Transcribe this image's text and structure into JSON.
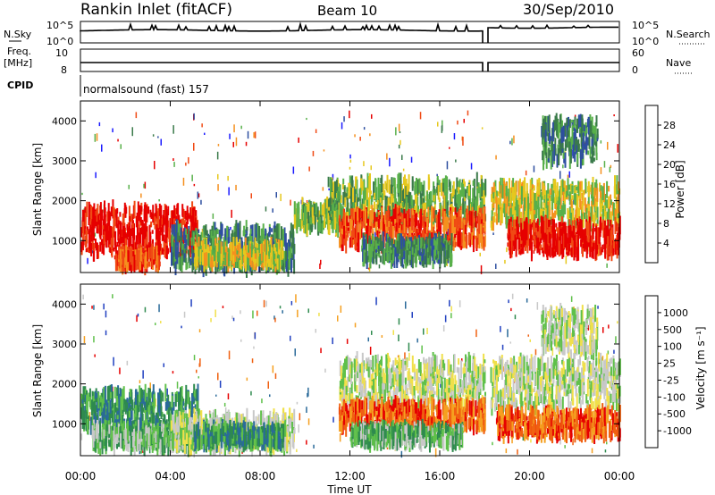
{
  "header": {
    "station": "Rankin Inlet (fitACF)",
    "beam": "Beam 10",
    "date": "30/Sep/2010"
  },
  "summary_panels": {
    "nsky_label": "N.Sky",
    "nsky_ticks": [
      "10^5",
      "10^0"
    ],
    "nsearch_label": "N.Search",
    "nsearch_ticks": [
      "10^5",
      "10^0"
    ],
    "freq_label": "Freq.",
    "freq_unit": "[MHz]",
    "freq_ticks": [
      "10",
      "8"
    ],
    "nave_label": "Nave",
    "nave_ticks": [
      "60",
      "0"
    ],
    "cpid_label": "CPID",
    "cpid_value": "normalsound (fast) 157"
  },
  "colors": {
    "power": [
      "#1a1aff",
      "#2e4fa0",
      "#3a7a4a",
      "#58b04a",
      "#e6c81e",
      "#f5901e",
      "#f04a14",
      "#e60000"
    ],
    "velocity": [
      "#2040c0",
      "#2a6a9a",
      "#2e8a4e",
      "#5fc04a",
      "#c8c8c8",
      "#f0e04a",
      "#f5a020",
      "#f06010",
      "#e60000"
    ],
    "frame": "#000000"
  },
  "chart_data": [
    {
      "type": "heatmap",
      "name_hint": "power",
      "ylabel": "Slant Range [km]",
      "ylim": [
        200,
        4500
      ],
      "xlim_hours": [
        0,
        24
      ],
      "y_ticks": [
        "1000",
        "2000",
        "3000",
        "4000"
      ],
      "colorbar_label": "Power [dB]",
      "colorbar_ticks": [
        "4",
        "8",
        "12",
        "16",
        "20",
        "24",
        "28"
      ],
      "colorbar_range": [
        0,
        32
      ],
      "regions": [
        {
          "t": [
            0.0,
            5.2
          ],
          "r": [
            700,
            1800
          ],
          "level": 7
        },
        {
          "t": [
            1.5,
            3.5
          ],
          "r": [
            350,
            700
          ],
          "level": 6
        },
        {
          "t": [
            4.0,
            9.5
          ],
          "r": [
            300,
            1300
          ],
          "level": 2
        },
        {
          "t": [
            5.0,
            9.0
          ],
          "r": [
            400,
            900
          ],
          "level": 4
        },
        {
          "t": [
            9.5,
            11.5
          ],
          "r": [
            1300,
            1900
          ],
          "level": 3
        },
        {
          "t": [
            11.0,
            18.0
          ],
          "r": [
            1400,
            2500
          ],
          "level": 3
        },
        {
          "t": [
            11.5,
            18.0
          ],
          "r": [
            900,
            1700
          ],
          "level": 6
        },
        {
          "t": [
            12.5,
            16.5
          ],
          "r": [
            500,
            1000
          ],
          "level": 2
        },
        {
          "t": [
            18.2,
            24.0
          ],
          "r": [
            1400,
            2400
          ],
          "level": 4
        },
        {
          "t": [
            19.0,
            24.0
          ],
          "r": [
            700,
            1400
          ],
          "level": 7
        },
        {
          "t": [
            20.5,
            23.0
          ],
          "r": [
            3000,
            4000
          ],
          "level": 2
        }
      ]
    },
    {
      "type": "heatmap",
      "name_hint": "velocity",
      "ylabel": "Slant Range [km]",
      "xlabel": "Time UT",
      "ylim": [
        200,
        4500
      ],
      "xlim_hours": [
        0,
        24
      ],
      "x_ticks": [
        "00:00",
        "04:00",
        "08:00",
        "12:00",
        "16:00",
        "20:00",
        "00:00"
      ],
      "y_ticks": [
        "1000",
        "2000",
        "3000",
        "4000"
      ],
      "colorbar_label": "Velocity [m s⁻¹]",
      "colorbar_ticks": [
        "1000",
        "500",
        "100",
        "25",
        "-25",
        "-100",
        "-500",
        "-1000"
      ],
      "regions": [
        {
          "t": [
            0.0,
            5.2
          ],
          "r": [
            900,
            1800
          ],
          "level": 2
        },
        {
          "t": [
            0.5,
            5.0
          ],
          "r": [
            400,
            900
          ],
          "level": 3
        },
        {
          "t": [
            4.0,
            9.5
          ],
          "r": [
            400,
            1200
          ],
          "level": 4
        },
        {
          "t": [
            5.0,
            9.0
          ],
          "r": [
            500,
            900
          ],
          "level": 2
        },
        {
          "t": [
            11.5,
            24.0
          ],
          "r": [
            1400,
            2600
          ],
          "level": 4
        },
        {
          "t": [
            11.5,
            18.0
          ],
          "r": [
            900,
            1500
          ],
          "level": 7
        },
        {
          "t": [
            18.5,
            24.0
          ],
          "r": [
            700,
            1300
          ],
          "level": 7
        },
        {
          "t": [
            12.0,
            17.0
          ],
          "r": [
            500,
            900
          ],
          "level": 3
        },
        {
          "t": [
            20.5,
            23.0
          ],
          "r": [
            2800,
            3800
          ],
          "level": 4
        }
      ]
    }
  ]
}
